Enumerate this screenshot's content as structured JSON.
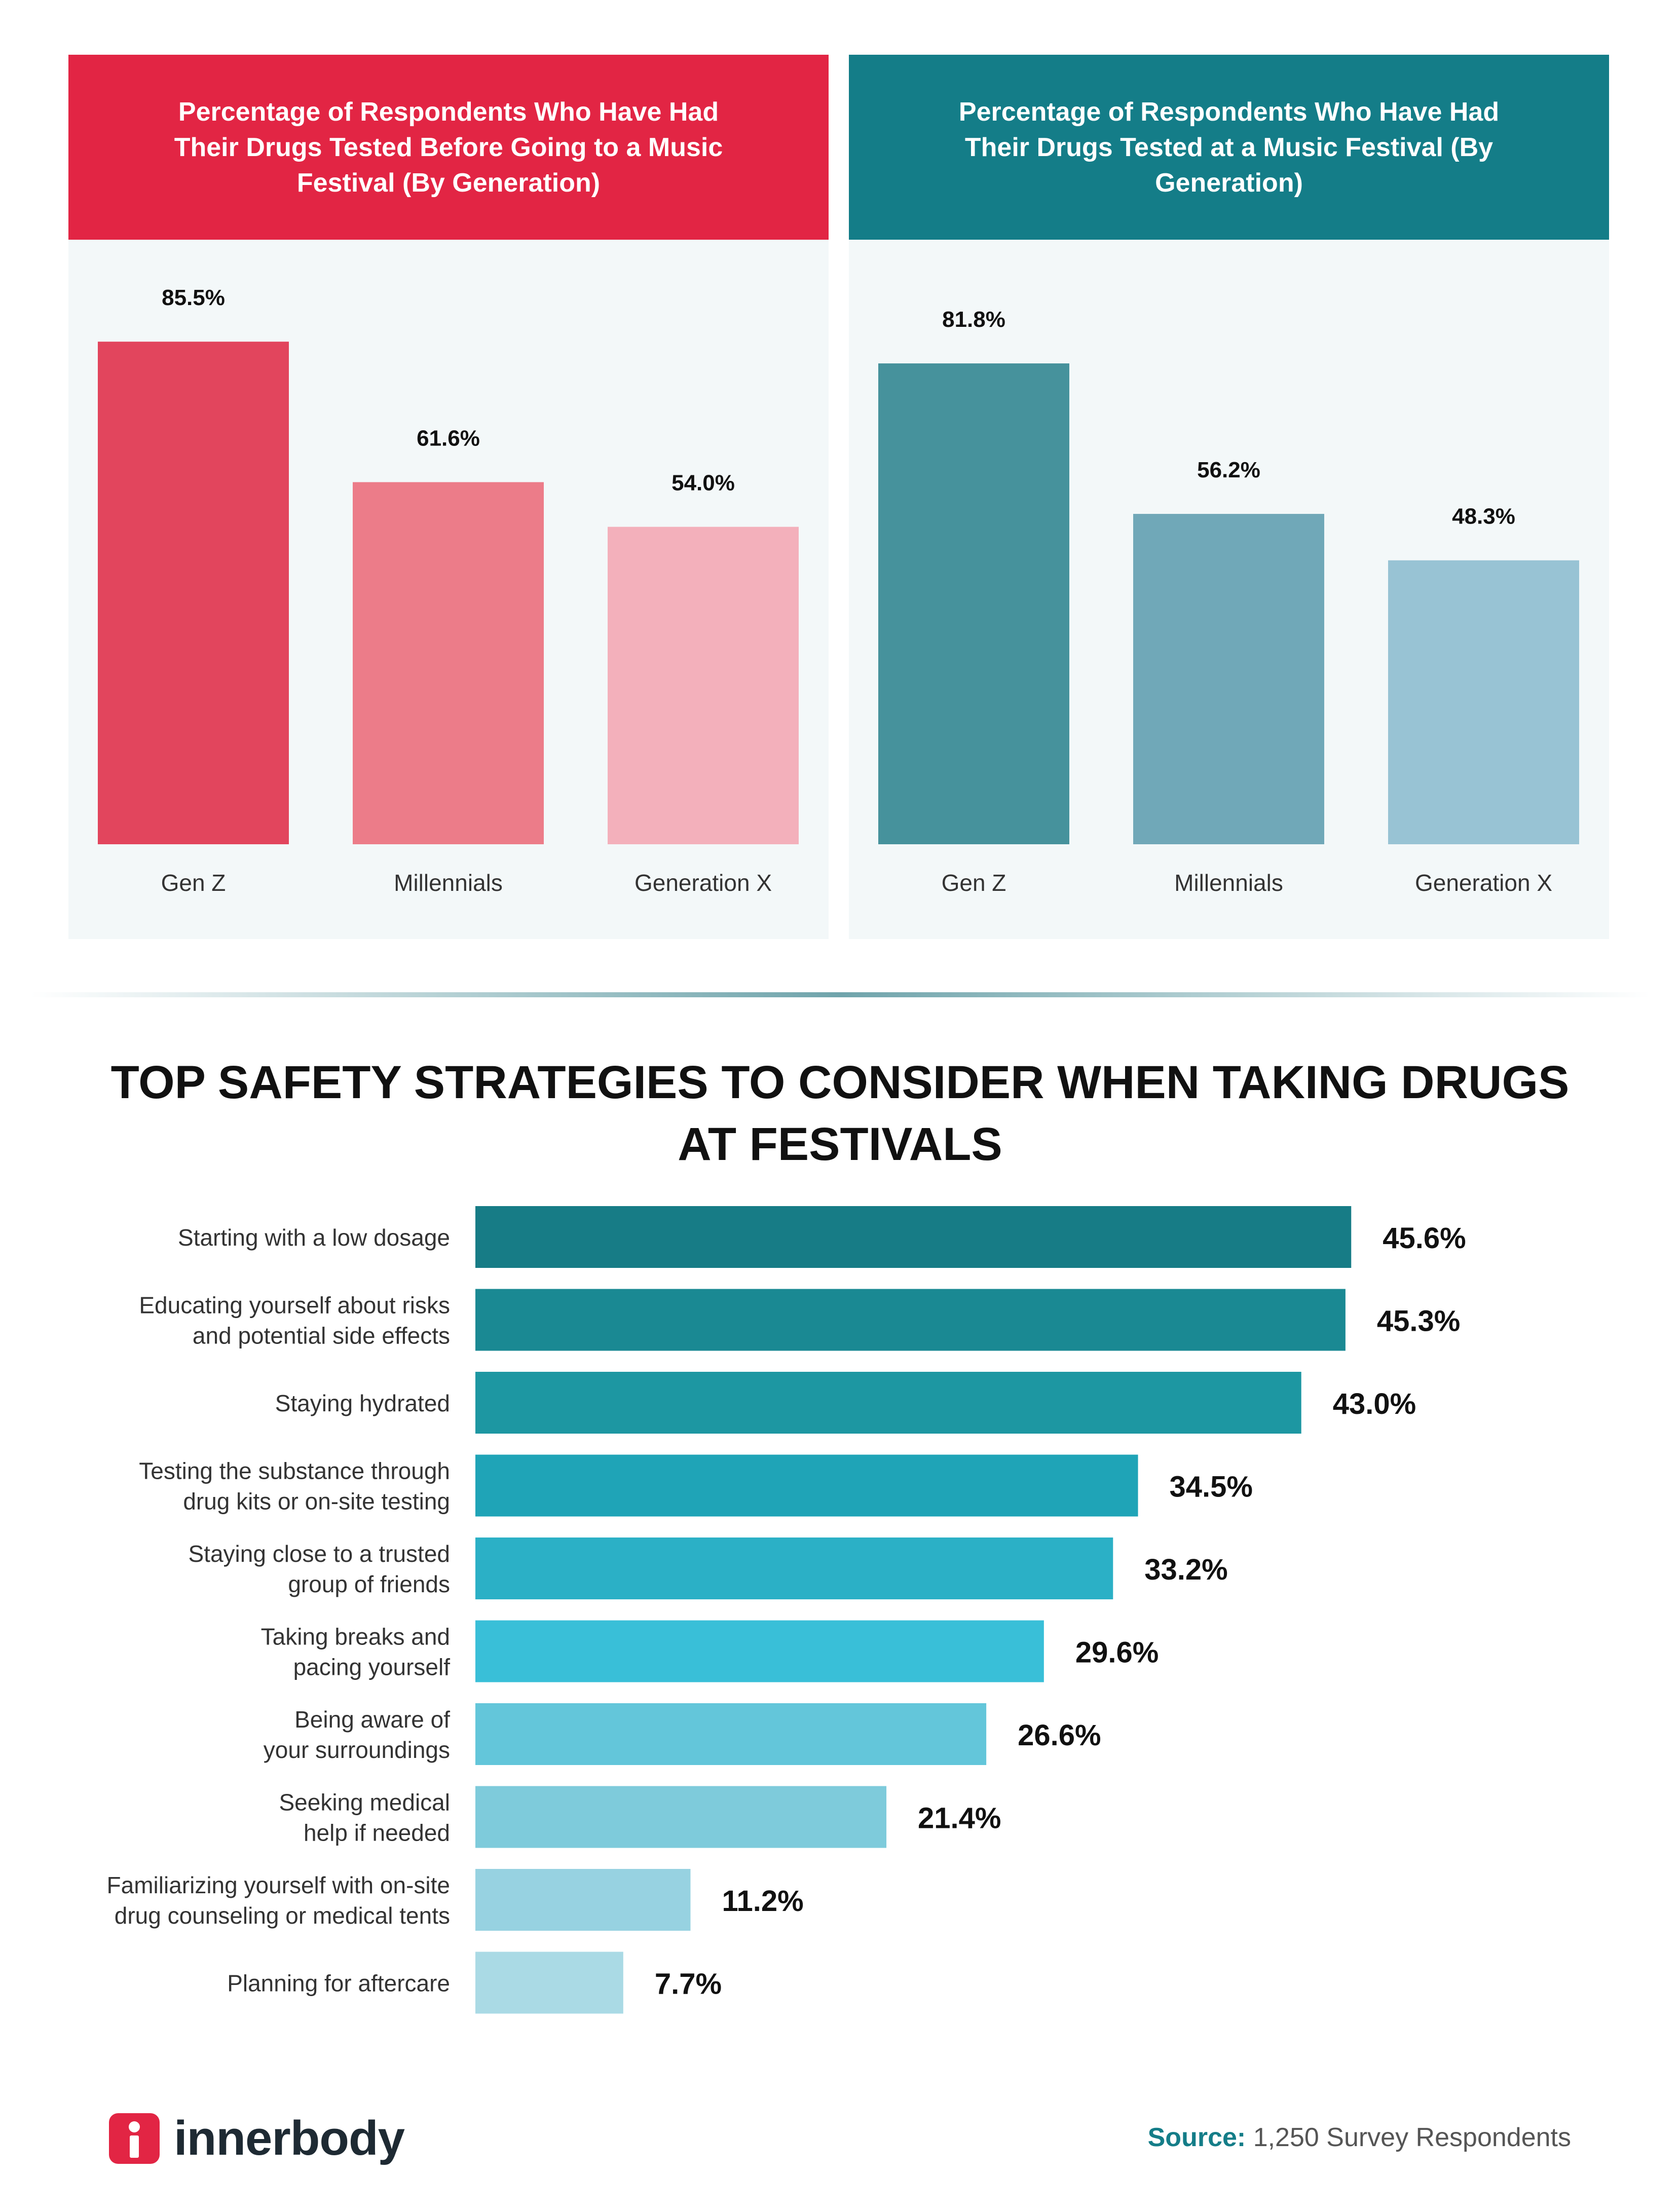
{
  "chart_data": [
    {
      "type": "bar",
      "title": "Percentage of Respondents Who Have Had Their Drugs Tested Before Going to a Music Festival (By Generation)",
      "categories": [
        "Gen Z",
        "Millennials",
        "Generation X"
      ],
      "values": [
        85.5,
        61.6,
        54.0
      ],
      "value_labels": [
        "85.5%",
        "61.6%",
        "54.0%"
      ],
      "colors": [
        "#e2455d",
        "#ec7c89",
        "#f3b0bb"
      ],
      "ylim": [
        0,
        100
      ],
      "xlabel": "",
      "ylabel": ""
    },
    {
      "type": "bar",
      "title": "Percentage of Respondents Who Have Had Their Drugs Tested at a Music Festival (By Generation)",
      "categories": [
        "Gen Z",
        "Millennials",
        "Generation X"
      ],
      "values": [
        81.8,
        56.2,
        48.3
      ],
      "value_labels": [
        "81.8%",
        "56.2%",
        "48.3%"
      ],
      "colors": [
        "#46929c",
        "#70a8b8",
        "#98c3d4"
      ],
      "ylim": [
        0,
        100
      ],
      "xlabel": "",
      "ylabel": ""
    },
    {
      "type": "bar",
      "orientation": "horizontal",
      "title": "TOP SAFETY STRATEGIES TO CONSIDER WHEN TAKING DRUGS AT FESTIVALS",
      "categories": [
        "Starting with a low dosage",
        "Educating yourself about risks and potential side effects",
        "Staying hydrated",
        "Testing the substance through drug kits or on-site testing",
        "Staying close to a trusted group of friends",
        "Taking breaks and pacing yourself",
        "Being aware of your surroundings",
        "Seeking medical help if needed",
        "Familiarizing yourself with on-site drug counseling or medical tents",
        "Planning for aftercare"
      ],
      "category_lines": [
        [
          "Starting with a low dosage"
        ],
        [
          "Educating yourself about risks",
          "and potential side effects"
        ],
        [
          "Staying hydrated"
        ],
        [
          "Testing the substance through",
          "drug kits or on-site testing"
        ],
        [
          "Staying close to a trusted",
          "group of friends"
        ],
        [
          "Taking breaks and",
          "pacing yourself"
        ],
        [
          "Being aware of",
          "your surroundings"
        ],
        [
          "Seeking medical",
          "help if needed"
        ],
        [
          "Familiarizing yourself with on-site",
          "drug counseling or medical tents"
        ],
        [
          "Planning for aftercare"
        ]
      ],
      "values": [
        45.6,
        45.3,
        43.0,
        34.5,
        33.2,
        29.6,
        26.6,
        21.4,
        11.2,
        7.7
      ],
      "value_labels": [
        "45.6%",
        "45.3%",
        "43.0%",
        "34.5%",
        "33.2%",
        "29.6%",
        "26.6%",
        "21.4%",
        "11.2%",
        "7.7%"
      ],
      "colors": [
        "#177c86",
        "#1a8993",
        "#1d97a2",
        "#1fa4b7",
        "#2bb0c6",
        "#39bfd8",
        "#63c6da",
        "#7ecbdb",
        "#97d2e1",
        "#aadae5"
      ],
      "xlim": [
        0,
        50
      ],
      "xlabel": "",
      "ylabel": ""
    }
  ],
  "footer": {
    "brand": "innerbody",
    "source_label": "Source:",
    "source_text": "1,250 Survey Respondents"
  }
}
